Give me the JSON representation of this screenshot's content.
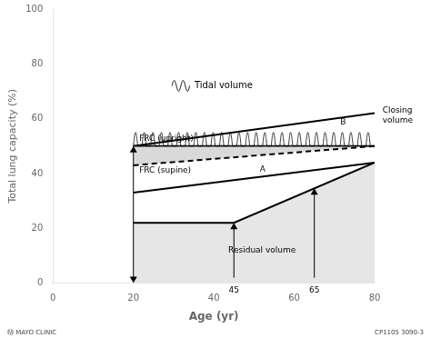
{
  "chart_data": {
    "type": "line",
    "xlabel": "Age (yr)",
    "ylabel": "Total lung capacity (%)",
    "xlim": [
      0,
      80
    ],
    "ylim": [
      0,
      100
    ],
    "xticks": [
      0,
      20,
      40,
      60,
      80
    ],
    "yticks": [
      0,
      20,
      40,
      60,
      80,
      100
    ],
    "grid": false,
    "series": [
      {
        "x": [
          20,
          45,
          80
        ],
        "values": [
          22,
          22,
          44
        ],
        "color": "#000000"
      },
      {
        "x": [
          20,
          80
        ],
        "values": [
          33,
          44
        ],
        "color": "#000000"
      },
      {
        "x": [
          20,
          80
        ],
        "values": [
          43,
          50
        ],
        "color": "#000000",
        "line_style": "dashed"
      },
      {
        "x": [
          20,
          80
        ],
        "values": [
          50,
          50
        ],
        "color": "#000000"
      },
      {
        "x": [
          20,
          80
        ],
        "values": [
          50,
          62
        ],
        "color": "#000000"
      }
    ],
    "tidal_volume": {
      "base": 50.0,
      "amplitude": 5.0,
      "cycles": 28,
      "x": [
        20,
        80
      ]
    },
    "arrows": [
      {
        "x": 20,
        "values": [
          0,
          50
        ],
        "type": "double"
      },
      {
        "x": 45,
        "values": [
          2,
          22
        ],
        "type": "single",
        "label": "45"
      },
      {
        "x": 65,
        "values": [
          2,
          34.57142857142857
        ],
        "type": "single",
        "label": "65"
      }
    ],
    "annotations": [
      {
        "text": "FRC (upright)",
        "x": 21,
        "y": 51.0
      },
      {
        "text": "FRC (supine)",
        "x": 21,
        "y": 43.5
      },
      {
        "text": "A",
        "x": 51,
        "y": 39.5
      },
      {
        "text": "B",
        "x": 71,
        "y": 57.0
      },
      {
        "text": "Residual volume",
        "x": 52,
        "y": 12
      },
      {
        "text": "Closing\nvolume",
        "x": 81.5,
        "y": 61.0
      }
    ],
    "tidal_volume_label": "Tidal volume",
    "footer": [
      "Ⓜ MAYO CLINIC",
      "CP1105 3090-3"
    ]
  }
}
